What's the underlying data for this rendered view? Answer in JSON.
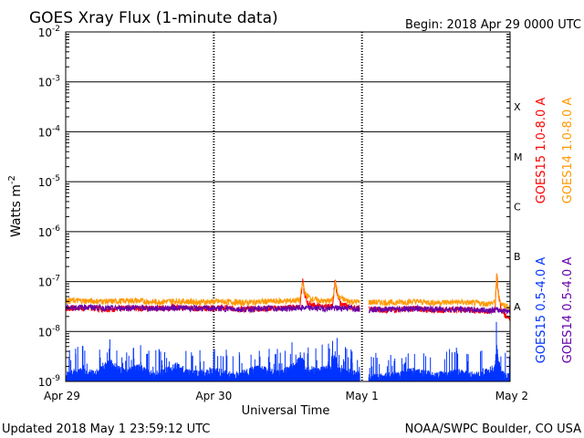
{
  "chart_data": {
    "type": "line",
    "title": "GOES Xray Flux (1-minute data)",
    "begin_label": "Begin:  2018 Apr 29 0000 UTC",
    "xlabel": "Universal Time",
    "ylabel_base": "Watts m",
    "ylabel_exp": "-2",
    "yscale": "log",
    "ylim": [
      1e-09,
      0.01
    ],
    "x_unit": "days since 2018 Apr 29 0000 UTC",
    "xlim": [
      0,
      3
    ],
    "x_ticks": [
      {
        "x": 0,
        "label": "Apr 29"
      },
      {
        "x": 1,
        "label": "Apr 30"
      },
      {
        "x": 2,
        "label": "May 1"
      },
      {
        "x": 3,
        "label": "May 2"
      }
    ],
    "y_ticks": [
      {
        "exp": -2,
        "base": "10",
        "sup": "-2"
      },
      {
        "exp": -3,
        "base": "10",
        "sup": "-3"
      },
      {
        "exp": -4,
        "base": "10",
        "sup": "-4"
      },
      {
        "exp": -5,
        "base": "10",
        "sup": "-5"
      },
      {
        "exp": -6,
        "base": "10",
        "sup": "-6"
      },
      {
        "exp": -7,
        "base": "10",
        "sup": "-7"
      },
      {
        "exp": -8,
        "base": "10",
        "sup": "-8"
      },
      {
        "exp": -9,
        "base": "10",
        "sup": "-9"
      }
    ],
    "flare_classes": [
      {
        "label": "X",
        "exp": -3.5
      },
      {
        "label": "M",
        "exp": -4.5
      },
      {
        "label": "C",
        "exp": -5.5
      },
      {
        "label": "B",
        "exp": -6.5
      },
      {
        "label": "A",
        "exp": -7.5
      }
    ],
    "data_gap": [
      1.985,
      2.045
    ],
    "series": [
      {
        "name": "GOES15 1.0-8.0 A",
        "color": "#ff0000",
        "band": "long",
        "points": [
          [
            0,
            2.9e-08
          ],
          [
            0.15,
            3e-08
          ],
          [
            0.3,
            2.8e-08
          ],
          [
            0.45,
            3e-08
          ],
          [
            0.6,
            2.9e-08
          ],
          [
            0.75,
            3.1e-08
          ],
          [
            0.9,
            2.9e-08
          ],
          [
            1.05,
            3e-08
          ],
          [
            1.2,
            2.8e-08
          ],
          [
            1.35,
            2.9e-08
          ],
          [
            1.5,
            3e-08
          ],
          [
            1.58,
            3.2e-08
          ],
          [
            1.6,
            1.05e-07
          ],
          [
            1.61,
            6e-08
          ],
          [
            1.63,
            3.8e-08
          ],
          [
            1.68,
            3.3e-08
          ],
          [
            1.75,
            3.1e-08
          ],
          [
            1.8,
            3.2e-08
          ],
          [
            1.82,
            1.15e-07
          ],
          [
            1.83,
            5.5e-08
          ],
          [
            1.86,
            3.5e-08
          ],
          [
            1.92,
            3.1e-08
          ],
          [
            1.98,
            2.9e-08
          ],
          [
            2.05,
            2.8e-08
          ],
          [
            2.2,
            2.7e-08
          ],
          [
            2.35,
            2.9e-08
          ],
          [
            2.5,
            2.7e-08
          ],
          [
            2.65,
            2.8e-08
          ],
          [
            2.78,
            2.6e-08
          ],
          [
            2.86,
            2.5e-08
          ],
          [
            2.9,
            2.8e-08
          ],
          [
            2.91,
            1.6e-07
          ],
          [
            2.92,
            6e-08
          ],
          [
            2.94,
            2.7e-08
          ],
          [
            2.97,
            2.1e-08
          ],
          [
            3.0,
            1.9e-08
          ]
        ]
      },
      {
        "name": "GOES14 1.0-8.0 A",
        "color": "#ff9900",
        "band": "long",
        "points": [
          [
            0,
            4.2e-08
          ],
          [
            0.15,
            4.1e-08
          ],
          [
            0.3,
            4e-08
          ],
          [
            0.45,
            4.2e-08
          ],
          [
            0.6,
            3.9e-08
          ],
          [
            0.75,
            4.1e-08
          ],
          [
            0.9,
            3.9e-08
          ],
          [
            1.05,
            4e-08
          ],
          [
            1.2,
            3.8e-08
          ],
          [
            1.35,
            4e-08
          ],
          [
            1.5,
            4.1e-08
          ],
          [
            1.58,
            4.3e-08
          ],
          [
            1.6,
            9.5e-08
          ],
          [
            1.62,
            5.5e-08
          ],
          [
            1.66,
            4.5e-08
          ],
          [
            1.75,
            4e-08
          ],
          [
            1.8,
            4.2e-08
          ],
          [
            1.82,
            1e-07
          ],
          [
            1.84,
            5e-08
          ],
          [
            1.9,
            4.1e-08
          ],
          [
            1.98,
            3.9e-08
          ],
          [
            2.05,
            3.9e-08
          ],
          [
            2.2,
            3.8e-08
          ],
          [
            2.35,
            4e-08
          ],
          [
            2.5,
            3.8e-08
          ],
          [
            2.65,
            3.9e-08
          ],
          [
            2.78,
            3.7e-08
          ],
          [
            2.86,
            3.6e-08
          ],
          [
            2.9,
            3.9e-08
          ],
          [
            2.91,
            1.3e-07
          ],
          [
            2.92,
            5.5e-08
          ],
          [
            2.94,
            3.6e-08
          ],
          [
            3.0,
            3e-08
          ]
        ]
      },
      {
        "name": "GOES14 0.5-4.0 A",
        "color": "#6600aa",
        "band": "short",
        "points": [
          [
            0,
            3e-08
          ],
          [
            0.15,
            3.1e-08
          ],
          [
            0.3,
            2.9e-08
          ],
          [
            0.45,
            3e-08
          ],
          [
            0.6,
            2.9e-08
          ],
          [
            0.75,
            3e-08
          ],
          [
            0.9,
            2.9e-08
          ],
          [
            1.05,
            2.9e-08
          ],
          [
            1.2,
            2.8e-08
          ],
          [
            1.35,
            2.9e-08
          ],
          [
            1.5,
            2.9e-08
          ],
          [
            1.6,
            3e-08
          ],
          [
            1.75,
            2.9e-08
          ],
          [
            1.9,
            3e-08
          ],
          [
            1.98,
            2.9e-08
          ],
          [
            2.05,
            2.8e-08
          ],
          [
            2.2,
            2.8e-08
          ],
          [
            2.35,
            2.9e-08
          ],
          [
            2.5,
            2.8e-08
          ],
          [
            2.65,
            2.8e-08
          ],
          [
            2.78,
            2.7e-08
          ],
          [
            2.9,
            2.7e-08
          ],
          [
            3.0,
            2.6e-08
          ]
        ]
      },
      {
        "name": "GOES15 0.5-4.0 A",
        "color": "#0033ff",
        "band": "short",
        "points": [
          [
            0,
            1.3e-09
          ],
          [
            0.1,
            1.7e-09
          ],
          [
            0.2,
            1.4e-09
          ],
          [
            0.3,
            2.4e-09
          ],
          [
            0.4,
            1.5e-09
          ],
          [
            0.5,
            1.9e-09
          ],
          [
            0.6,
            1.3e-09
          ],
          [
            0.75,
            2e-09
          ],
          [
            0.85,
            1.4e-09
          ],
          [
            1.0,
            1.6e-09
          ],
          [
            1.15,
            1.3e-09
          ],
          [
            1.3,
            1.8e-09
          ],
          [
            1.45,
            1.4e-09
          ],
          [
            1.55,
            2.1e-09
          ],
          [
            1.6,
            3.2e-09
          ],
          [
            1.62,
            1.8e-09
          ],
          [
            1.7,
            1.6e-09
          ],
          [
            1.8,
            2e-09
          ],
          [
            1.82,
            3.8e-09
          ],
          [
            1.84,
            1.7e-09
          ],
          [
            1.98,
            1.4e-09
          ],
          [
            2.05,
            1.2e-09
          ],
          [
            2.2,
            1.3e-09
          ],
          [
            2.35,
            1.6e-09
          ],
          [
            2.5,
            1.3e-09
          ],
          [
            2.65,
            1.5e-09
          ],
          [
            2.78,
            1.3e-09
          ],
          [
            2.86,
            1.6e-09
          ],
          [
            2.9,
            1.9e-09
          ],
          [
            2.91,
            6.5e-09
          ],
          [
            2.92,
            2.5e-09
          ],
          [
            2.96,
            1.3e-09
          ],
          [
            3.0,
            1.2e-09
          ]
        ]
      }
    ]
  },
  "footer": {
    "updated": "Updated 2018 May  1 23:59:12 UTC",
    "credit": "NOAA/SWPC Boulder, CO USA"
  }
}
